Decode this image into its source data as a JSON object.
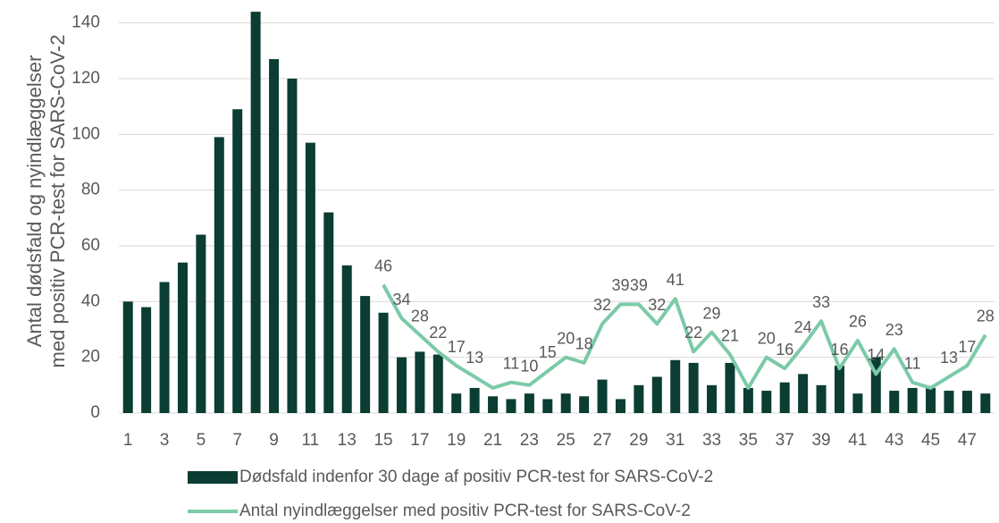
{
  "chart_data": {
    "type": "bar_line",
    "y_label": [
      "Antal dødsfald og nyindlæggelser",
      "med positiv PCR-test for SARS-CoV-2"
    ],
    "categories": [
      "1",
      null,
      "3",
      null,
      "5",
      null,
      "7",
      null,
      "9",
      null,
      "11",
      null,
      "13",
      null,
      "15",
      null,
      "17",
      null,
      "19",
      null,
      "21",
      null,
      "23",
      null,
      "25",
      null,
      "27",
      null,
      "29",
      null,
      "31",
      null,
      "33",
      null,
      "35",
      null,
      "37",
      null,
      "39",
      null,
      "41",
      null,
      "43",
      null,
      "45",
      null,
      "47",
      null
    ],
    "series": [
      {
        "name": "Dødsfald indenfor 30 dage af positiv PCR-test for SARS-CoV-2",
        "type": "bar",
        "color": "#0b3d32",
        "values": [
          40,
          38,
          47,
          54,
          64,
          99,
          109,
          144,
          127,
          120,
          97,
          72,
          53,
          42,
          36,
          20,
          22,
          21,
          7,
          9,
          6,
          5,
          7,
          5,
          7,
          6,
          12,
          5,
          10,
          13,
          19,
          18,
          10,
          18,
          9,
          8,
          11,
          14,
          10,
          17,
          7,
          20,
          8,
          9,
          9,
          8,
          8,
          7
        ]
      },
      {
        "name": "Antal nyindlæggelser med positiv PCR-test for SARS-CoV-2",
        "type": "line",
        "color": "#7ccaa8",
        "values": [
          null,
          null,
          null,
          null,
          null,
          null,
          null,
          null,
          null,
          null,
          null,
          null,
          null,
          null,
          46,
          34,
          28,
          22,
          17,
          13,
          9,
          11,
          10,
          15,
          20,
          18,
          32,
          39,
          39,
          32,
          41,
          22,
          29,
          21,
          9,
          20,
          16,
          24,
          33,
          16,
          26,
          14,
          23,
          11,
          9,
          13,
          17,
          28
        ],
        "value_labels": [
          null,
          null,
          null,
          null,
          null,
          null,
          null,
          null,
          null,
          null,
          null,
          null,
          null,
          null,
          46,
          34,
          28,
          22,
          17,
          13,
          null,
          11,
          10,
          15,
          20,
          18,
          32,
          39,
          39,
          32,
          41,
          22,
          29,
          21,
          null,
          20,
          16,
          24,
          33,
          16,
          26,
          14,
          23,
          11,
          null,
          13,
          17,
          28
        ]
      }
    ],
    "ylim": [
      0,
      145
    ],
    "yticks": [
      0,
      20,
      40,
      60,
      80,
      100,
      120,
      140
    ],
    "grid": true,
    "legend": "bottom"
  }
}
